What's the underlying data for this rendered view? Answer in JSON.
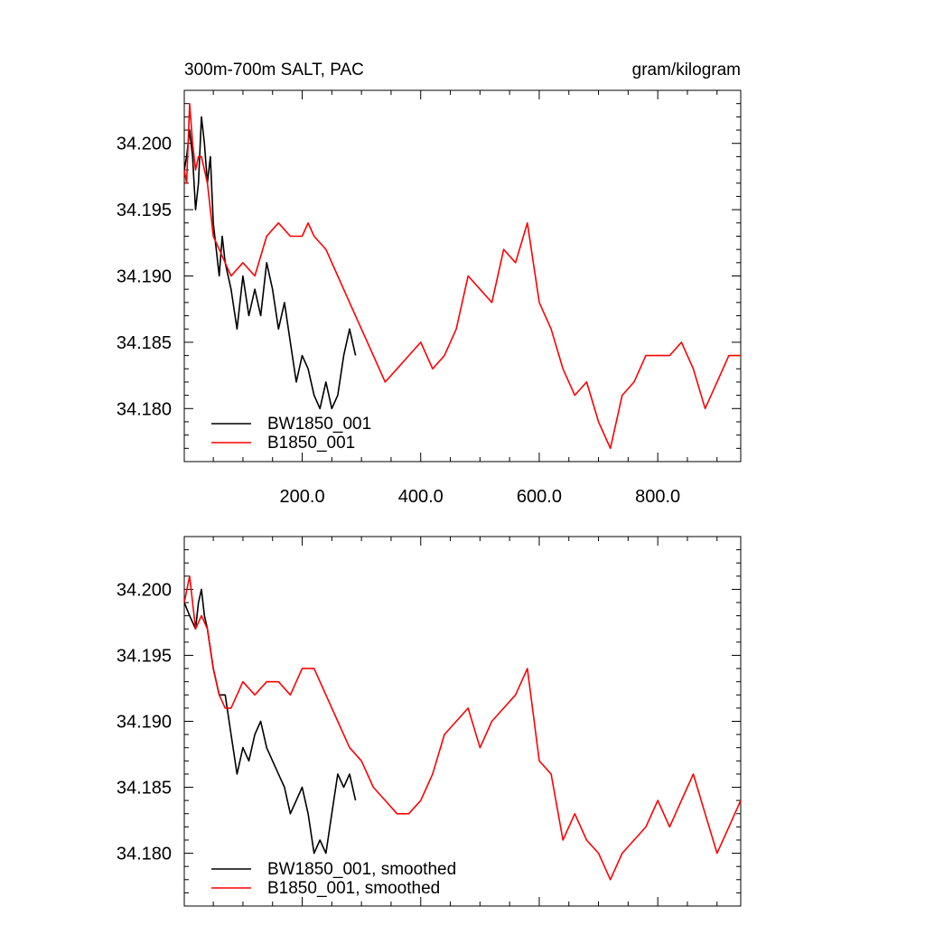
{
  "colors": {
    "series_a": "#000000",
    "series_b": "#ff0000"
  },
  "chart_data": [
    {
      "type": "line",
      "title_left": "300m-700m SALT, PAC",
      "title_right": "gram/kilogram",
      "xlim": [
        1,
        940
      ],
      "ylim": [
        34.176,
        34.204
      ],
      "x_ticks": [
        "200.0",
        "400.0",
        "600.0",
        "800.0"
      ],
      "y_ticks": [
        "34.180",
        "34.185",
        "34.190",
        "34.195",
        "34.200"
      ],
      "grid": false,
      "legend_position": "bottom-left",
      "series": [
        {
          "name": "BW1850_001",
          "color": "#000000",
          "x": [
            1,
            5,
            10,
            15,
            20,
            25,
            30,
            35,
            40,
            45,
            50,
            55,
            60,
            65,
            70,
            80,
            90,
            100,
            110,
            120,
            130,
            140,
            150,
            160,
            170,
            180,
            190,
            200,
            210,
            220,
            230,
            240,
            250,
            260,
            270,
            280,
            290
          ],
          "y": [
            34.198,
            34.199,
            34.201,
            34.199,
            34.195,
            34.197,
            34.202,
            34.2,
            34.197,
            34.199,
            34.194,
            34.192,
            34.19,
            34.193,
            34.191,
            34.189,
            34.186,
            34.19,
            34.187,
            34.189,
            34.187,
            34.191,
            34.189,
            34.186,
            34.188,
            34.185,
            34.182,
            34.184,
            34.183,
            34.181,
            34.18,
            34.182,
            34.18,
            34.181,
            34.184,
            34.186,
            34.184
          ]
        },
        {
          "name": "B1850_001",
          "color": "#ff0000",
          "x": [
            1,
            5,
            10,
            15,
            20,
            25,
            30,
            35,
            40,
            45,
            50,
            60,
            70,
            80,
            100,
            120,
            140,
            160,
            180,
            200,
            210,
            220,
            240,
            260,
            280,
            300,
            320,
            340,
            360,
            380,
            400,
            420,
            440,
            460,
            480,
            500,
            520,
            540,
            560,
            580,
            600,
            620,
            640,
            660,
            680,
            700,
            720,
            740,
            760,
            780,
            800,
            820,
            840,
            860,
            880,
            900,
            920,
            940
          ],
          "y": [
            34.198,
            34.197,
            34.203,
            34.2,
            34.198,
            34.199,
            34.199,
            34.198,
            34.197,
            34.195,
            34.193,
            34.192,
            34.191,
            34.19,
            34.191,
            34.19,
            34.193,
            34.194,
            34.193,
            34.193,
            34.194,
            34.193,
            34.192,
            34.19,
            34.188,
            34.186,
            34.184,
            34.182,
            34.183,
            34.184,
            34.185,
            34.183,
            34.184,
            34.186,
            34.19,
            34.189,
            34.188,
            34.192,
            34.191,
            34.194,
            34.188,
            34.186,
            34.183,
            34.181,
            34.182,
            34.179,
            34.177,
            34.181,
            34.182,
            34.184,
            34.184,
            34.184,
            34.185,
            34.183,
            34.18,
            34.182,
            34.184,
            34.184
          ]
        }
      ]
    },
    {
      "type": "line",
      "xlim": [
        1,
        940
      ],
      "ylim": [
        34.176,
        34.204
      ],
      "y_ticks": [
        "34.180",
        "34.185",
        "34.190",
        "34.195",
        "34.200"
      ],
      "grid": false,
      "legend_position": "bottom-left",
      "series": [
        {
          "name": "BW1850_001, smoothed",
          "color": "#000000",
          "x": [
            1,
            10,
            20,
            25,
            30,
            35,
            40,
            50,
            60,
            70,
            80,
            90,
            100,
            110,
            120,
            130,
            140,
            150,
            160,
            170,
            180,
            190,
            200,
            210,
            220,
            230,
            240,
            250,
            260,
            270,
            280,
            290
          ],
          "y": [
            34.199,
            34.198,
            34.197,
            34.199,
            34.2,
            34.198,
            34.197,
            34.194,
            34.192,
            34.192,
            34.189,
            34.186,
            34.188,
            34.187,
            34.189,
            34.19,
            34.188,
            34.187,
            34.186,
            34.185,
            34.183,
            34.184,
            34.185,
            34.183,
            34.18,
            34.181,
            34.18,
            34.183,
            34.186,
            34.185,
            34.186,
            34.184
          ]
        },
        {
          "name": "B1850_001, smoothed",
          "color": "#ff0000",
          "x": [
            1,
            10,
            20,
            30,
            40,
            50,
            60,
            70,
            80,
            100,
            120,
            140,
            160,
            180,
            200,
            210,
            220,
            240,
            260,
            280,
            300,
            320,
            340,
            360,
            380,
            400,
            420,
            440,
            460,
            480,
            500,
            520,
            540,
            560,
            580,
            600,
            620,
            640,
            660,
            680,
            700,
            720,
            740,
            760,
            780,
            800,
            820,
            840,
            860,
            880,
            900,
            920,
            940
          ],
          "y": [
            34.199,
            34.201,
            34.197,
            34.198,
            34.197,
            34.194,
            34.192,
            34.191,
            34.191,
            34.193,
            34.192,
            34.193,
            34.193,
            34.192,
            34.194,
            34.194,
            34.194,
            34.192,
            34.19,
            34.188,
            34.187,
            34.185,
            34.184,
            34.183,
            34.183,
            34.184,
            34.186,
            34.189,
            34.19,
            34.191,
            34.188,
            34.19,
            34.191,
            34.192,
            34.194,
            34.187,
            34.186,
            34.181,
            34.183,
            34.181,
            34.18,
            34.178,
            34.18,
            34.181,
            34.182,
            34.184,
            34.182,
            34.184,
            34.186,
            34.183,
            34.18,
            34.182,
            34.184
          ]
        }
      ]
    }
  ]
}
